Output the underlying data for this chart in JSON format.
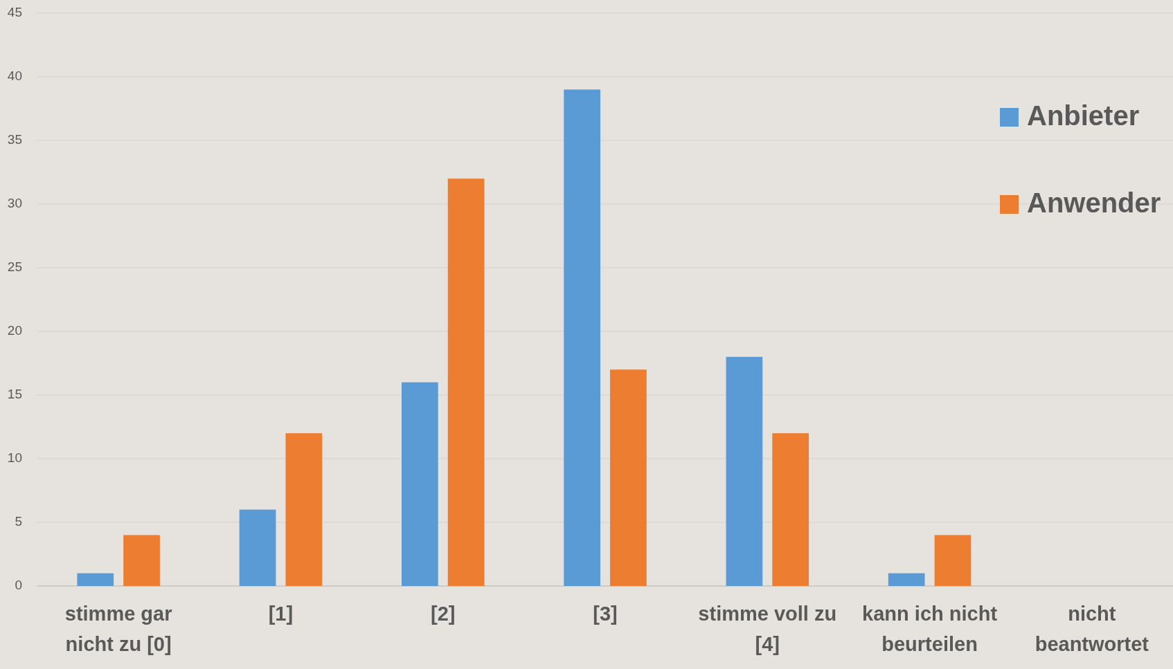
{
  "chart_data": {
    "type": "bar",
    "categories": [
      "stimme gar nicht zu [0]",
      "[1]",
      "[2]",
      "[3]",
      "stimme voll zu [4]",
      "kann ich nicht beurteilen",
      "nicht beantwortet"
    ],
    "series": [
      {
        "name": "Anbieter",
        "color": "#5b9bd5",
        "values": [
          1,
          6,
          16,
          39,
          18,
          1,
          0
        ]
      },
      {
        "name": "Anwender",
        "color": "#ed7d31",
        "values": [
          4,
          12,
          32,
          17,
          12,
          4,
          0
        ]
      }
    ],
    "ylim": [
      0,
      45
    ],
    "yticks": [
      0,
      5,
      10,
      15,
      20,
      25,
      30,
      35,
      40,
      45
    ],
    "grid": "y",
    "legend": "top right"
  }
}
